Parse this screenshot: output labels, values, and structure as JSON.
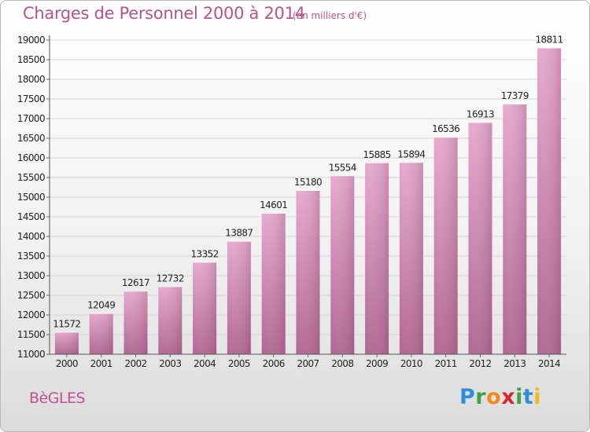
{
  "header": {
    "title": "Charges de Personnel 2000 à 2014",
    "subtitle": "(en milliers d'€)"
  },
  "footer": {
    "commune": "BèGLES",
    "logo_letters": [
      {
        "char": "P",
        "color": "#2e8fd6"
      },
      {
        "char": "r",
        "color": "#3fa14a"
      },
      {
        "char": "o",
        "color": "#f08a1c"
      },
      {
        "char": "x",
        "color": "#d9262e"
      },
      {
        "char": "i",
        "color": "#3fa14a"
      },
      {
        "char": "t",
        "color": "#2e8fd6"
      },
      {
        "char": "i",
        "color": "#f0b91c"
      }
    ]
  },
  "chart_data": {
    "type": "bar",
    "categories": [
      "2000",
      "2001",
      "2002",
      "2003",
      "2004",
      "2005",
      "2006",
      "2007",
      "2008",
      "2009",
      "2010",
      "2011",
      "2012",
      "2013",
      "2014"
    ],
    "values": [
      11572,
      12049,
      12617,
      12732,
      13352,
      13887,
      14601,
      15180,
      15554,
      15885,
      15894,
      16536,
      16913,
      17379,
      18811
    ],
    "ylim": [
      11000,
      19000
    ],
    "yticks": [
      11000,
      11500,
      12000,
      12500,
      13000,
      13500,
      14000,
      14500,
      15000,
      15500,
      16000,
      16500,
      17000,
      17500,
      18000,
      18500,
      19000
    ],
    "grid": true,
    "bar_color": "#d98cb8"
  }
}
